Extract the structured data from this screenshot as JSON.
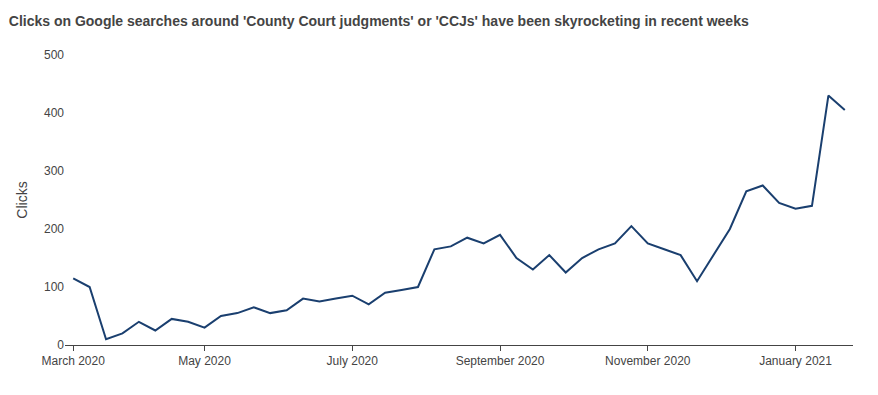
{
  "chart_data": {
    "type": "line",
    "title": "Clicks on Google searches around 'County Court judgments' or 'CCJs' have been skyrocketing in recent weeks",
    "ylabel": "Clicks",
    "categories": [
      "March 2020",
      null,
      null,
      null,
      null,
      null,
      null,
      null,
      "May 2020",
      null,
      null,
      null,
      null,
      null,
      null,
      null,
      null,
      "July 2020",
      null,
      null,
      null,
      null,
      null,
      null,
      null,
      null,
      "September 2020",
      null,
      null,
      null,
      null,
      null,
      null,
      null,
      null,
      "November 2020",
      null,
      null,
      null,
      null,
      null,
      null,
      null,
      null,
      "January 2021",
      null,
      null,
      null
    ],
    "values": [
      115,
      100,
      10,
      20,
      40,
      25,
      45,
      40,
      30,
      50,
      55,
      65,
      55,
      60,
      80,
      75,
      80,
      85,
      70,
      90,
      95,
      100,
      165,
      170,
      185,
      175,
      190,
      150,
      130,
      155,
      125,
      150,
      165,
      175,
      205,
      175,
      165,
      155,
      110,
      155,
      200,
      265,
      275,
      245,
      235,
      240,
      430,
      405
    ],
    "color": "#1a3f6f",
    "ylim": [
      0,
      500
    ],
    "yticks": [
      0,
      100,
      200,
      300,
      400,
      500
    ],
    "grid": false
  }
}
